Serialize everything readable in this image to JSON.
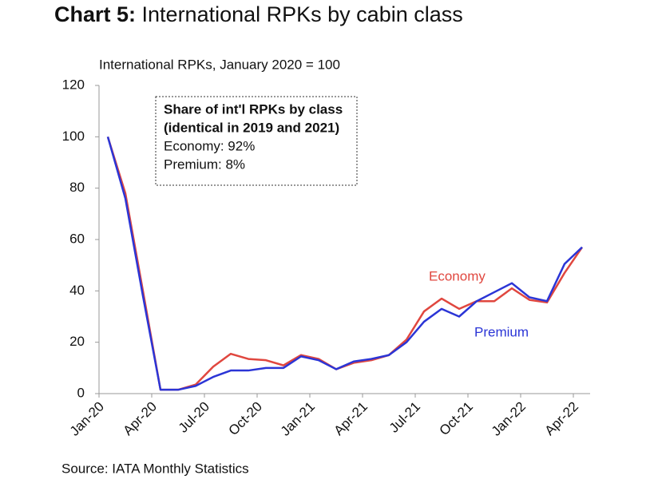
{
  "chart_data": {
    "type": "line",
    "title_label": "Chart 5:",
    "title": "International RPKs by cabin class",
    "y_axis_label": "International RPKs, January 2020 = 100",
    "annotation": [
      "Share of int'l RPKs by class",
      "(identical in 2019 and 2021)",
      "Economy: 92%",
      "Premium:  8%"
    ],
    "source": "Source: IATA Monthly Statistics",
    "categories": [
      "Jan-20",
      null,
      null,
      "Apr-20",
      null,
      null,
      "Jul-20",
      null,
      null,
      "Oct-20",
      null,
      null,
      "Jan-21",
      null,
      null,
      "Apr-21",
      null,
      null,
      "Jul-21",
      null,
      null,
      "Oct-21",
      null,
      null,
      "Jan-22",
      null,
      null,
      "Apr-22"
    ],
    "series": [
      {
        "name": "Economy",
        "color": "#e0473f",
        "values": [
          100,
          78,
          40,
          1.5,
          1.5,
          3.5,
          10.5,
          15.5,
          13.5,
          13,
          11,
          15,
          13.5,
          9.5,
          12,
          13,
          15,
          21,
          32,
          37,
          33,
          36,
          36,
          41,
          36.5,
          35.5,
          47,
          57
        ]
      },
      {
        "name": "Premium",
        "color": "#2b35d6",
        "values": [
          100,
          76,
          38,
          1.5,
          1.5,
          3,
          6.5,
          9,
          9,
          10,
          10,
          14.5,
          13,
          9.5,
          12.5,
          13.5,
          15,
          20,
          28,
          33,
          30,
          36,
          39.5,
          43,
          37.5,
          36,
          50.5,
          57
        ]
      }
    ],
    "ylim": [
      0,
      120
    ],
    "yticks": [
      0,
      20,
      40,
      60,
      80,
      100,
      120
    ],
    "grid": false
  }
}
